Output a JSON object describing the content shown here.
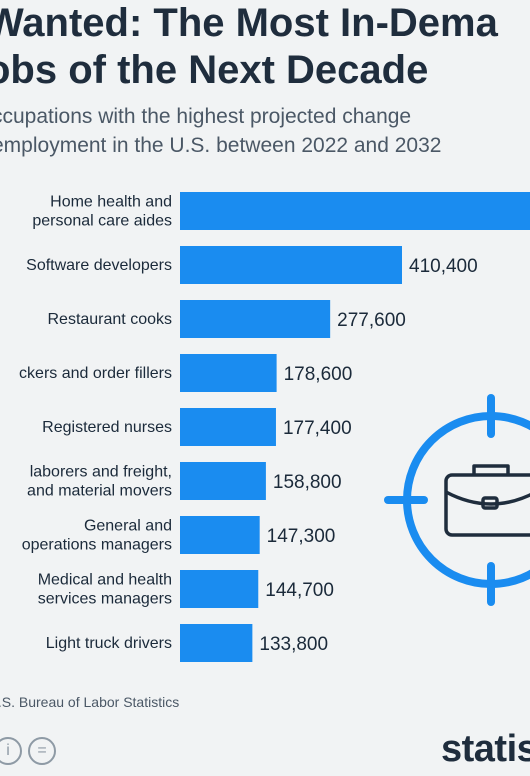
{
  "header": {
    "title_line1": "Wanted: The Most In-Dema",
    "title_line2": "obs of the Next Decade",
    "subtitle_line1": "ccupations with the highest projected change",
    "subtitle_line2": "employment in the U.S. between 2022 and 2032"
  },
  "chart_data": {
    "type": "bar",
    "orientation": "horizontal",
    "bar_color": "#1a8cf0",
    "categories": [
      [
        "Home health and",
        "personal care aides"
      ],
      [
        "Software developers"
      ],
      [
        "Restaurant cooks"
      ],
      [
        "ckers and order fillers"
      ],
      [
        "Registered nurses"
      ],
      [
        "laborers and freight,",
        "and material movers"
      ],
      [
        "General and",
        "operations managers"
      ],
      [
        "Medical and health",
        "services managers"
      ],
      [
        "Light truck drivers"
      ]
    ],
    "values": [
      null,
      410400,
      277600,
      178600,
      177400,
      158800,
      147300,
      144700,
      133800
    ],
    "value_labels": [
      "",
      "410,400",
      "277,600",
      "178,600",
      "177,400",
      "158,800",
      "147,300",
      "144,700",
      "133,800"
    ]
  },
  "footer": {
    "source": ": U.S. Bureau of Labor Statistics",
    "brand": "statis"
  }
}
